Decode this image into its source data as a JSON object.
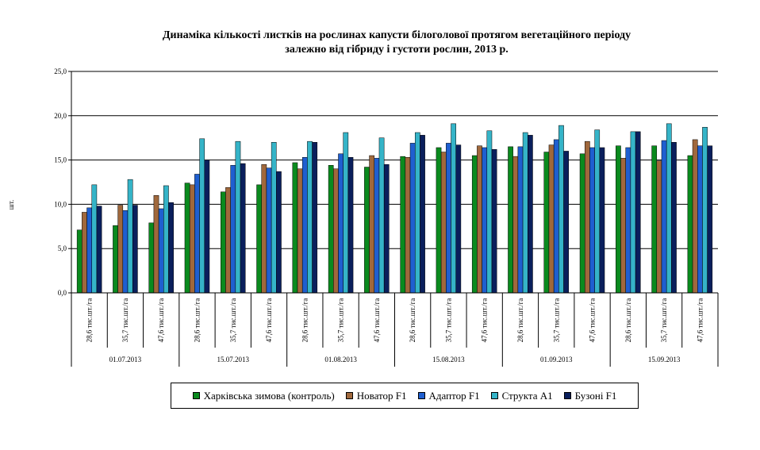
{
  "chart_data": {
    "type": "bar",
    "title": [
      "Динаміка кількості листків на рослинах капусти білоголової протягом вегетаційного періоду",
      "залежно від гібриду  і густоти рослин,  2013 р."
    ],
    "ylabel": "шт.",
    "ylim": [
      0,
      25
    ],
    "yticks": [
      "0,0",
      "5,0",
      "10,0",
      "15,0",
      "20,0",
      "25,0"
    ],
    "grid": true,
    "legend_position": "bottom",
    "categories": [
      "28,6 тис.шт./га",
      "35,7 тис.шт./га",
      "47,6 тис.шт./га",
      "28,6 тис.шт./га",
      "35,7 тис.шт./га",
      "47,6 тис.шт./га",
      "28,6 тис.шт./га",
      "35,7 тис.шт./га",
      "47,6 тис.шт./га",
      "28,6 тис.шт./га",
      "35,7 тис.шт./га",
      "47,6 тис.шт./га",
      "28,6 тис.шт./га",
      "35,7 тис.шт./га",
      "47,6 тис.шт./га",
      "28,6 тис.шт./га",
      "35,7 тис.шт./га",
      "47,6 тис.шт./га"
    ],
    "groups": [
      "01.07.2013",
      "15.07.2013",
      "01.08.2013",
      "15.08.2013",
      "01.09.2013",
      "15.09.2013"
    ],
    "series": [
      {
        "name": "Харківська зимова (контроль)",
        "color": "#0a8a1e",
        "values": [
          7.1,
          7.6,
          7.9,
          12.4,
          11.4,
          12.2,
          14.7,
          14.4,
          14.2,
          15.4,
          16.4,
          15.5,
          16.5,
          15.9,
          15.7,
          16.6,
          16.6,
          15.5
        ]
      },
      {
        "name": "Новатор  F1",
        "color": "#a0683c",
        "values": [
          9.1,
          9.9,
          11.0,
          12.2,
          11.9,
          14.5,
          14.0,
          14.0,
          15.5,
          15.3,
          15.9,
          16.6,
          15.4,
          16.7,
          17.1,
          15.2,
          14.9,
          17.3
        ]
      },
      {
        "name": "Адаптор   F1",
        "color": "#1f5fd0",
        "values": [
          9.6,
          9.3,
          9.5,
          13.4,
          14.4,
          14.1,
          15.3,
          15.7,
          15.2,
          16.9,
          16.9,
          16.4,
          16.5,
          17.3,
          16.4,
          16.4,
          17.2,
          16.6
        ]
      },
      {
        "name": "Структа  А1",
        "color": "#35b4c8",
        "values": [
          12.2,
          12.8,
          12.1,
          17.4,
          17.1,
          17.0,
          17.1,
          18.1,
          17.5,
          18.1,
          19.1,
          18.3,
          18.1,
          18.9,
          18.4,
          18.2,
          19.1,
          18.7
        ]
      },
      {
        "name": "Бузоні F1",
        "color": "#0a1f5c",
        "values": [
          9.8,
          9.9,
          10.2,
          15.0,
          14.6,
          13.7,
          17.0,
          15.3,
          14.5,
          17.8,
          16.7,
          16.2,
          17.8,
          16.0,
          16.4,
          18.2,
          17.0,
          16.6
        ]
      }
    ]
  }
}
